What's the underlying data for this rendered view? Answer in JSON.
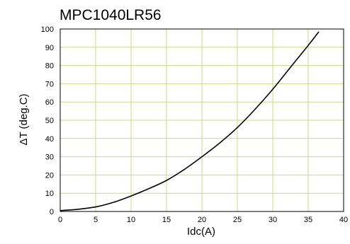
{
  "chart_data": {
    "type": "line",
    "title": "MPC1040LR56",
    "xlabel": "Idc(A)",
    "ylabel": "ΔT (deg.C)",
    "xlim": [
      0,
      40
    ],
    "ylim": [
      0,
      100
    ],
    "xticks": [
      0,
      5,
      10,
      15,
      20,
      25,
      30,
      35,
      40
    ],
    "yticks": [
      0,
      10,
      20,
      30,
      40,
      50,
      60,
      70,
      80,
      90,
      100
    ],
    "grid": true,
    "grid_color": "#c8d98a",
    "line_color": "#000000",
    "series": [
      {
        "x": [
          0,
          2.5,
          5,
          7.5,
          10,
          12.5,
          15,
          17.5,
          20,
          22.5,
          25,
          27.5,
          30,
          32.5,
          35,
          36.5
        ],
        "values": [
          0.5,
          1.2,
          2.5,
          5,
          8.5,
          12.5,
          17,
          23,
          30,
          37.5,
          46,
          56,
          67,
          79,
          91,
          98.5
        ]
      }
    ]
  }
}
